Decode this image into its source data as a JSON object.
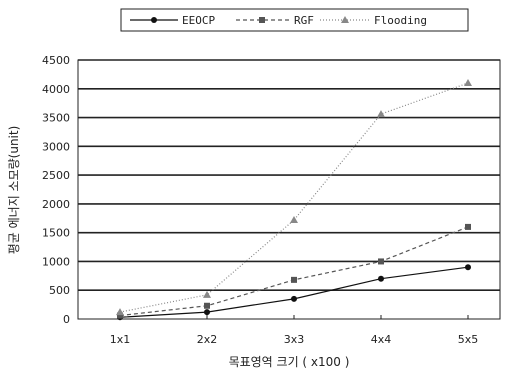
{
  "chart_data": {
    "type": "line",
    "categories": [
      "1x1",
      "2x2",
      "3x3",
      "4x4",
      "5x5"
    ],
    "series": [
      {
        "name": "EEOCP",
        "values": [
          30,
          120,
          350,
          700,
          900
        ],
        "color": "#111111",
        "dash": "solid",
        "marker": "circle"
      },
      {
        "name": "RGF",
        "values": [
          60,
          230,
          680,
          1000,
          1600
        ],
        "color": "#555555",
        "dash": "dashed",
        "marker": "square"
      },
      {
        "name": "Flooding",
        "values": [
          120,
          420,
          1720,
          3560,
          4100
        ],
        "color": "#888888",
        "dash": "dotted",
        "marker": "triangle"
      }
    ],
    "xlabel": "목표영역 크기 ( x100 )",
    "ylabel": "평균 에너지 소모량(unit)",
    "ylim": [
      0,
      4500
    ],
    "yticks": [
      0,
      500,
      1000,
      1500,
      2000,
      2500,
      3000,
      3500,
      4000,
      4500
    ],
    "grid": true,
    "legend_position": "top"
  }
}
